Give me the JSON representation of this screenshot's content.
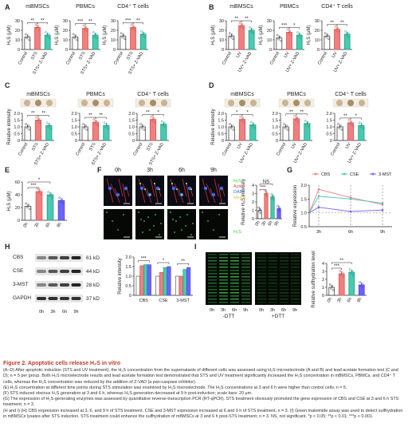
{
  "panel_labels": [
    "A",
    "B",
    "C",
    "D",
    "E",
    "F",
    "G",
    "H",
    "I"
  ],
  "panelA": {
    "titles": [
      "mBMSCs",
      "PBMCs",
      "CD4⁺ T cells"
    ],
    "ylabel": "H₂S (μM)",
    "ticks": [
      "0",
      "10",
      "20",
      "30"
    ],
    "xlabels": [
      "Control",
      "STS",
      "STS+ Z-VAD"
    ]
  },
  "panelB": {
    "titles": [
      "mBMSCs",
      "PBMCs",
      "CD4⁺ T cells"
    ],
    "ylabel": "H₂S (μM)",
    "ticks": [
      "0",
      "10",
      "20",
      "30"
    ],
    "xlabels": [
      "Control",
      "UV",
      "UV+ Z-VAD"
    ]
  },
  "panelC": {
    "titles": [
      "mBMSCs",
      "PBMCs",
      "CD4⁺ T cells"
    ],
    "ylabel": "Relative intensity",
    "ticks": [
      "0",
      "0.5",
      "1.0",
      "1.5",
      "2.0"
    ],
    "xlabels": [
      "Control",
      "STS",
      "STS+ Z-VAD"
    ]
  },
  "panelD": {
    "titles": [
      "mBMSCs",
      "PBMCs",
      "CD4⁺ T cells"
    ],
    "ylabel": "Relative intensity",
    "ticks": [
      "0",
      "0.5",
      "1.0",
      "1.5",
      "2.0"
    ],
    "xlabels": [
      "Control",
      "UV",
      "UV+ Z-VAD"
    ]
  },
  "panelE": {
    "ylabel": "H₂S (μM)",
    "ticks": [
      "0",
      "20",
      "40",
      "60"
    ],
    "xlabels": [
      "0h",
      "3h",
      "6h",
      "9h"
    ]
  },
  "panelF": {
    "times": [
      "0h",
      "3h",
      "6h",
      "9h"
    ],
    "legend": [
      "H₂S",
      "Actin",
      "DAPI",
      "Merge"
    ],
    "legend_colors": [
      "#2ecc40",
      "#e74c3c",
      "#3b6cf0",
      "#e0c040"
    ],
    "bottom_label": "H₂S",
    "ylabel": "Relative H₂S intensity",
    "ticks": [
      "0",
      "1",
      "2",
      "3",
      "4"
    ],
    "xlabels": [
      "0h",
      "3h",
      "6h",
      "9h"
    ]
  },
  "panelG": {
    "legend": [
      "CBS",
      "CSE",
      "3-MST"
    ],
    "colors": [
      "#f08080",
      "#48c9b0",
      "#6c63ff"
    ],
    "ylabel": "Relative expression",
    "ticks": [
      "0.5",
      "1.0",
      "1.5",
      "2.0"
    ],
    "xlabels": [
      "3h",
      "6h",
      "9h"
    ]
  },
  "panelH": {
    "bands": [
      {
        "name": "CBS",
        "kda": "61 kD"
      },
      {
        "name": "CSE",
        "kda": "44 kD"
      },
      {
        "name": "3-MST",
        "kda": "28 kD"
      },
      {
        "name": "GAPDH",
        "kda": "37 kD"
      }
    ],
    "lanes": [
      "0h",
      "3h",
      "6h",
      "9h"
    ],
    "ylabel": "Relative intensity",
    "ticks": [
      "0",
      "0.5",
      "1.0",
      "1.5",
      "2.0"
    ],
    "groups": [
      "CBS",
      "CSE",
      "3-MST"
    ]
  },
  "panelI": {
    "lanes": [
      "0h",
      "3h",
      "6h",
      "9h"
    ],
    "conds": [
      "-DTT",
      "+DTT"
    ],
    "ylabel": "Relative sulfhydration level",
    "ticks": [
      "0",
      "1",
      "2",
      "3",
      "4"
    ],
    "xlabels": [
      "0h",
      "3h",
      "6h",
      "9h"
    ]
  },
  "caption": {
    "title": "Figure 2.  Apoptotic cells release H₂S in vitro",
    "paras": [
      "(A–D) After apoptotic induction (STS and UV treatment), the H₂S concentration from the supernatants of different cells was assessed using H₂S microelectrode (A and B) and lead acetate formation test (C and D); n = 5 per group. Both H₂S microelectrode results and lead acetate formation test demonstrated that STS and UV treatment significantly increased the H₂S concentration in mBMSCs, PBMCs, and CD4⁺ T cells, whereas the H₂S concentration was reduced by the addition of Z-VAD (a pan-caspase inhibitor).",
      "(E) H₂S concentration at different time points during STS stimulation was examined by H₂S microelectrode. The H₂S concentrations at 3 and 6 h were higher than control cells; n = 5.",
      "(F) STS induced obvious H₂S generation at 3 and 6 h, whereas H₂S generation decreased at 9 h post-induction; scale bars: 20 μm.",
      "(G) The expression of H₂S-generating enzymes was assessed by quantitative reverse-transcription PCR (RT-qPCR). STS treatment obviously promoted the gene expression of CBS and CSE at 3 and 6 h STS treatment; n = 3.",
      "(H and I) (H) CBS expression increased at 3, 6, and 9 h of STS treatment. CSE and 3-MST expression increased at 6 and 9 h of STS treatment, n = 3. (I) Green maleimide assay was used to detect sulfhydration in mBMSCs lysates after STS induction. STS treatment could enhance the sulfhydration of mBMSCs at 3 and 6 h post-STS treatment; n = 3. NS, not significant. *p < 0.05; **p < 0.01; ***p < 0.001."
    ]
  },
  "chart_data": [
    {
      "type": "bar",
      "title": "mBMSCs",
      "ylabel": "H₂S (μM)",
      "categories": [
        "Control",
        "STS",
        "STS+ Z-VAD"
      ],
      "values": [
        13,
        23,
        15
      ],
      "ylim": [
        0,
        30
      ],
      "annotations": [
        "**",
        "**"
      ]
    },
    {
      "type": "bar",
      "title": "PBMCs",
      "ylabel": "H₂S (μM)",
      "categories": [
        "Control",
        "STS",
        "STS+ Z-VAD"
      ],
      "values": [
        13,
        22,
        15
      ],
      "ylim": [
        0,
        30
      ],
      "annotations": [
        "***",
        "**"
      ]
    },
    {
      "type": "bar",
      "title": "CD4⁺ T cells",
      "ylabel": "H₂S (μM)",
      "categories": [
        "Control",
        "STS",
        "STS+ Z-VAD"
      ],
      "values": [
        14,
        23,
        16
      ],
      "ylim": [
        0,
        30
      ],
      "annotations": [
        "***",
        "**"
      ]
    },
    {
      "type": "bar",
      "title": "mBMSCs",
      "ylabel": "H₂S (μM)",
      "categories": [
        "Control",
        "UV",
        "UV+ Z-VAD"
      ],
      "values": [
        14,
        25,
        20
      ],
      "ylim": [
        0,
        30
      ],
      "annotations": [
        "**",
        "**"
      ]
    },
    {
      "type": "bar",
      "title": "PBMCs",
      "ylabel": "H₂S (μM)",
      "categories": [
        "Control",
        "UV",
        "UV+ Z-VAD"
      ],
      "values": [
        12,
        18,
        15
      ],
      "ylim": [
        0,
        30
      ],
      "annotations": [
        "***",
        "*"
      ]
    },
    {
      "type": "bar",
      "title": "CD4⁺ T cells",
      "ylabel": "H₂S (μM)",
      "categories": [
        "Control",
        "UV",
        "UV+ Z-VAD"
      ],
      "values": [
        14,
        21,
        16
      ],
      "ylim": [
        0,
        30
      ],
      "annotations": [
        "**",
        "**"
      ]
    },
    {
      "type": "bar",
      "title": "mBMSCs",
      "ylabel": "Relative intensity",
      "categories": [
        "Control",
        "STS",
        "STS+ Z-VAD"
      ],
      "values": [
        1.0,
        1.5,
        1.1
      ],
      "ylim": [
        0,
        2.0
      ],
      "annotations": [
        "**",
        "**"
      ]
    },
    {
      "type": "bar",
      "title": "PBMCs",
      "ylabel": "Relative intensity",
      "categories": [
        "Control",
        "STS",
        "STS+ Z-VAD"
      ],
      "values": [
        1.0,
        1.35,
        1.1
      ],
      "ylim": [
        0,
        2.0
      ],
      "annotations": [
        "**",
        "**"
      ]
    },
    {
      "type": "bar",
      "title": "CD4⁺ T cells",
      "ylabel": "Relative intensity",
      "categories": [
        "Control",
        "STS",
        "STS+ Z-VAD"
      ],
      "values": [
        1.0,
        1.55,
        1.2
      ],
      "ylim": [
        0,
        2.0
      ],
      "annotations": [
        "**",
        "*"
      ]
    },
    {
      "type": "bar",
      "title": "mBMSCs",
      "ylabel": "Relative intensity",
      "categories": [
        "Control",
        "UV",
        "UV+ Z-VAD"
      ],
      "values": [
        1.0,
        1.55,
        1.15
      ],
      "ylim": [
        0,
        2.0
      ],
      "annotations": [
        "*",
        "*"
      ]
    },
    {
      "type": "bar",
      "title": "PBMCs",
      "ylabel": "Relative intensity",
      "categories": [
        "Control",
        "UV",
        "UV+ Z-VAD"
      ],
      "values": [
        1.0,
        1.6,
        1.25
      ],
      "ylim": [
        0,
        2.0
      ],
      "annotations": [
        "**",
        "**"
      ]
    },
    {
      "type": "bar",
      "title": "CD4⁺ T cells",
      "ylabel": "Relative intensity",
      "categories": [
        "Control",
        "UV",
        "UV+ Z-VAD"
      ],
      "values": [
        1.0,
        1.3,
        1.1
      ],
      "ylim": [
        0,
        2.0
      ],
      "annotations": [
        "**",
        "*"
      ]
    },
    {
      "type": "bar",
      "ylabel": "H₂S (μM)",
      "categories": [
        "0h",
        "3h",
        "6h",
        "9h"
      ],
      "values": [
        22,
        45,
        40,
        31
      ],
      "ylim": [
        0,
        60
      ],
      "annotations": [
        "***",
        "*"
      ]
    },
    {
      "type": "bar",
      "ylabel": "Relative H₂S intensity",
      "categories": [
        "0h",
        "3h",
        "6h",
        "9h"
      ],
      "values": [
        1.0,
        3.0,
        2.6,
        1.2
      ],
      "ylim": [
        0,
        4
      ],
      "annotations": [
        "***",
        "NS"
      ]
    },
    {
      "type": "line",
      "ylabel": "Relative expression",
      "x": [
        "3h",
        "6h",
        "9h"
      ],
      "ylim": [
        0.5,
        2.0
      ],
      "series": [
        {
          "name": "CBS",
          "values": [
            1.85,
            1.55,
            1.3
          ]
        },
        {
          "name": "CSE",
          "values": [
            1.6,
            1.5,
            1.35
          ]
        },
        {
          "name": "3-MST",
          "values": [
            1.2,
            1.05,
            1.1
          ]
        }
      ]
    },
    {
      "type": "bar",
      "ylabel": "Relative intensity",
      "categories": [
        "CBS",
        "CSE",
        "3-MST"
      ],
      "series": [
        {
          "name": "0h",
          "values": [
            1.0,
            1.0,
            1.0
          ]
        },
        {
          "name": "3h",
          "values": [
            1.55,
            1.2,
            1.0
          ]
        },
        {
          "name": "6h",
          "values": [
            1.6,
            1.45,
            1.35
          ]
        },
        {
          "name": "9h",
          "values": [
            1.6,
            1.5,
            1.45
          ]
        }
      ],
      "ylim": [
        0,
        2.0
      ],
      "annotations": [
        "***",
        "*",
        "**"
      ]
    },
    {
      "type": "bar",
      "ylabel": "Relative sulfhydration level",
      "categories": [
        "0h",
        "3h",
        "6h",
        "9h"
      ],
      "values": [
        1.0,
        2.7,
        2.9,
        1.3
      ],
      "ylim": [
        0,
        4
      ],
      "annotations": [
        "***",
        "**"
      ]
    }
  ]
}
